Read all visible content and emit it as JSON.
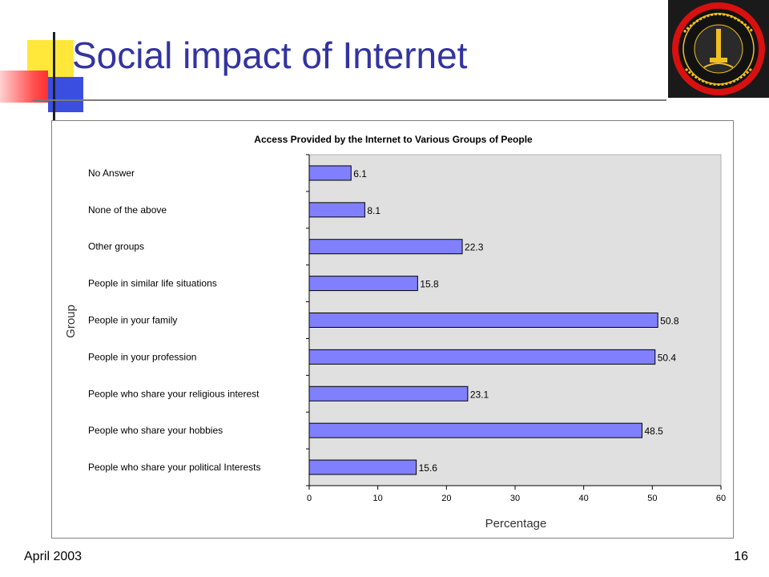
{
  "slide": {
    "title": "Social impact of Internet",
    "footer_date": "April 2003",
    "page_number": "16"
  },
  "logo": {
    "icon": "university-seal-icon",
    "colors": {
      "ring": "#d81010",
      "inner": "#121212",
      "text": "#f0c020"
    }
  },
  "colors": {
    "title": "#3333a0",
    "bar_fill": "#8080ff",
    "plot_background": "#e0e0e0",
    "deco_yellow": "#ffe83a",
    "deco_red": "#ff5050",
    "deco_blue": "#3a4ee0"
  },
  "chart_data": {
    "type": "bar",
    "orientation": "horizontal",
    "title": "Access Provided by the Internet to Various Groups of People",
    "xlabel": "Percentage",
    "ylabel": "Group",
    "xlim": [
      0,
      60
    ],
    "xticks": [
      0,
      10,
      20,
      30,
      40,
      50,
      60
    ],
    "grid": false,
    "legend": "none",
    "categories": [
      "No Answer",
      "None of the above",
      "Other groups",
      "People in similar life situations",
      "People in your family",
      "People in your profession",
      "People who share your religious interest",
      "People who share your hobbies",
      "People who share your political Interests"
    ],
    "values": [
      6.1,
      8.1,
      22.3,
      15.8,
      50.8,
      50.4,
      23.1,
      48.5,
      15.6
    ],
    "data_labels": [
      "6.1",
      "8.1",
      "22.3",
      "15.8",
      "50.8",
      "50.4",
      "23.1",
      "48.5",
      "15.6"
    ]
  }
}
